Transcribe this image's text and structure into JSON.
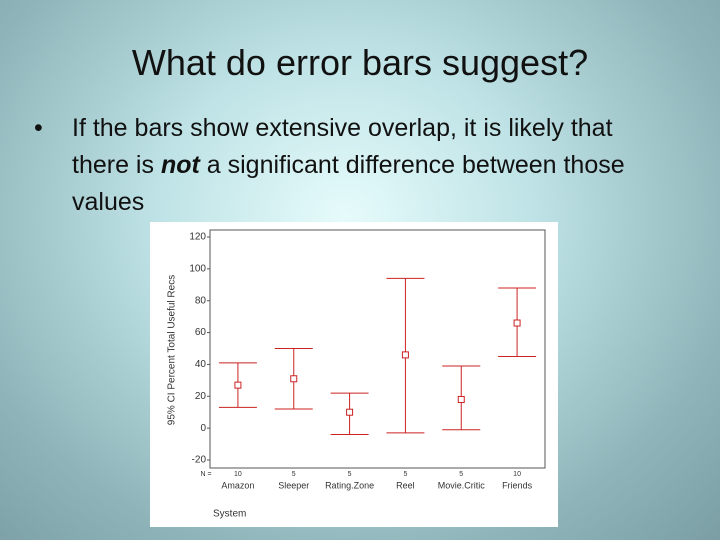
{
  "slide": {
    "title": "What do error bars suggest?",
    "bullet_before": "If the bars show extensive overlap, it is likely that there is",
    "bullet_emphasis": "not",
    "bullet_after": "a significant difference between those values"
  },
  "chart_data": {
    "type": "errorbar",
    "ylabel": "95% CI Percent Total Useful Recs",
    "xlabel": "System",
    "categories": [
      "Amazon",
      "Sleeper",
      "Rating.Zone",
      "Reel",
      "Movie.Critic",
      "Friends"
    ],
    "n_label": "N =",
    "n_counts": [
      10,
      5,
      5,
      5,
      5,
      10
    ],
    "series": [
      {
        "color": "#cc2222",
        "values": [
          27,
          31,
          10,
          46,
          18,
          66
        ],
        "lower": [
          13,
          12,
          -4,
          -3,
          -1,
          45
        ],
        "upper": [
          41,
          50,
          22,
          94,
          39,
          88
        ]
      }
    ],
    "ylim": [
      -20,
      120
    ],
    "yticks": [
      -20,
      0,
      20,
      40,
      60,
      80,
      100,
      120
    ]
  }
}
